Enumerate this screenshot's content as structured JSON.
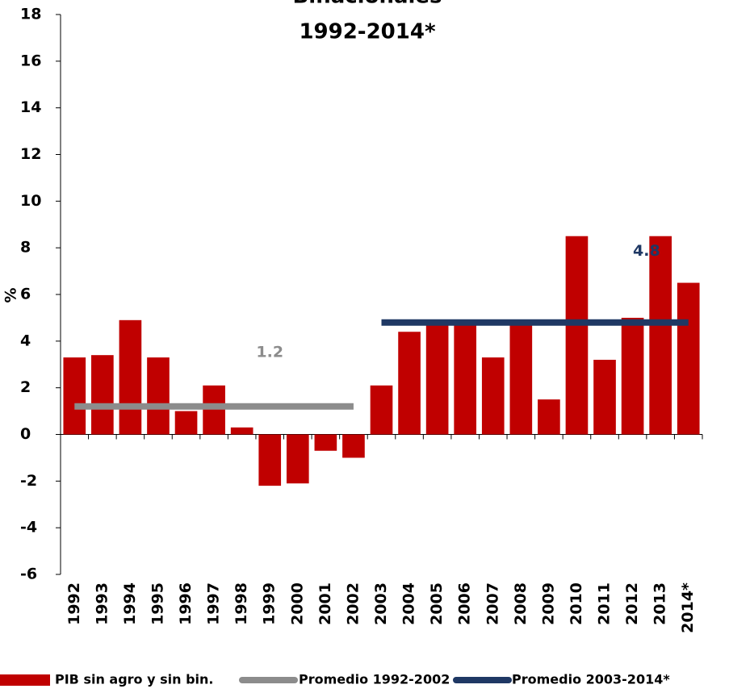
{
  "chart_data": {
    "type": "bar",
    "title": [
      "Binacionales",
      "1992-2014*"
    ],
    "y_label": "%",
    "categories": [
      "1992",
      "1993",
      "1994",
      "1995",
      "1996",
      "1997",
      "1998",
      "1999",
      "2000",
      "2001",
      "2002",
      "2003",
      "2004",
      "2005",
      "2006",
      "2007",
      "2008",
      "2009",
      "2010",
      "2011",
      "2012",
      "2013",
      "2014*"
    ],
    "series": [
      {
        "name": "PIB sin agro y sin bin.",
        "color": "#c00000",
        "type": "bar",
        "values": [
          3.3,
          3.4,
          4.9,
          3.3,
          1.0,
          2.1,
          0.3,
          -2.2,
          -2.1,
          -0.7,
          -1.0,
          2.1,
          4.4,
          4.7,
          4.9,
          3.3,
          4.7,
          1.5,
          8.5,
          3.2,
          5.0,
          8.5,
          6.5
        ]
      },
      {
        "name": "Promedio 1992-2002",
        "color": "#8c8c8c",
        "type": "line",
        "values": [
          1.2,
          1.2,
          1.2,
          1.2,
          1.2,
          1.2,
          1.2,
          1.2,
          1.2,
          1.2,
          1.2,
          null,
          null,
          null,
          null,
          null,
          null,
          null,
          null,
          null,
          null,
          null,
          null
        ]
      },
      {
        "name": "Promedio 2003-2014*",
        "color": "#1f3864",
        "type": "line",
        "values": [
          null,
          null,
          null,
          null,
          null,
          null,
          null,
          null,
          null,
          null,
          null,
          4.8,
          4.8,
          4.8,
          4.8,
          4.8,
          4.8,
          4.8,
          4.8,
          4.8,
          4.8,
          4.8,
          4.8
        ]
      }
    ],
    "ylim": [
      -6,
      18
    ],
    "yticks": [
      -6,
      -4,
      -2,
      0,
      2,
      4,
      6,
      8,
      10,
      12,
      14,
      16,
      18
    ],
    "legend": "bottom"
  }
}
